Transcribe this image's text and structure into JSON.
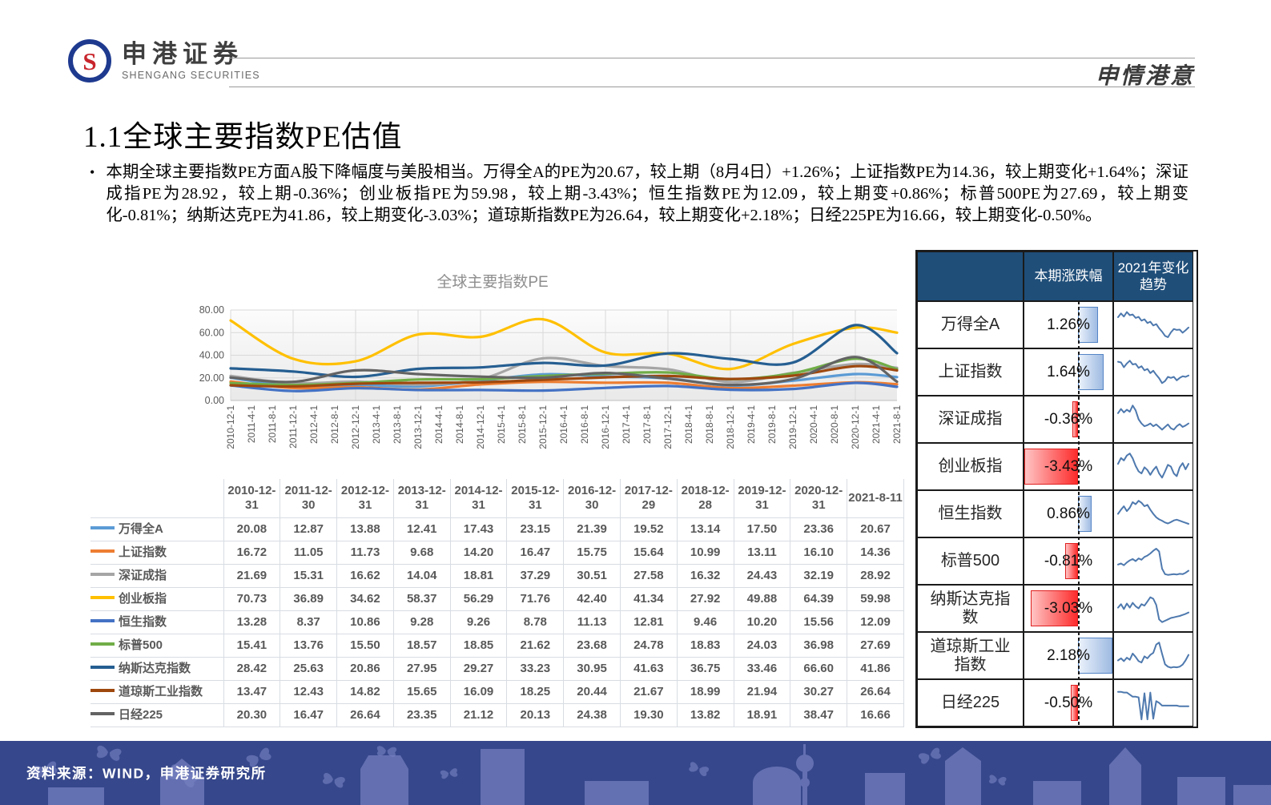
{
  "header": {
    "brand_cn": "申港证券",
    "brand_en": "SHENGANG SECURITIES",
    "logo_letter": "S",
    "slogan": "申情港意"
  },
  "page": {
    "title": "1.1全球主要指数PE估值",
    "bullet_marker": "•",
    "bullet": "本期全球主要指数PE方面A股下降幅度与美股相当。万得全A的PE为20.67，较上期（8月4日）+1.26%；上证指数PE为14.36，较上期变化+1.64%；深证成指PE为28.92，较上期-0.36%；创业板指PE为59.98，较上期-3.43%；恒生指数PE为12.09，较上期变+0.86%；标普500PE为27.69，较上期变化-0.81%；纳斯达克PE为41.86，较上期变化-3.03%；道琼斯指数PE为26.64，较上期变化+2.18%；日经225PE为16.66，较上期变化-0.50%。"
  },
  "chart_data": {
    "type": "line",
    "title": "全球主要指数PE",
    "ylim": [
      0,
      80
    ],
    "yticks": [
      0,
      20,
      40,
      60,
      80
    ],
    "grid": true,
    "legend_position": "table-left-column",
    "x_axis_labels": [
      "2010-12-1",
      "2011-4-1",
      "2011-8-1",
      "2011-12-1",
      "2012-4-1",
      "2012-8-1",
      "2012-12-1",
      "2013-4-1",
      "2013-8-1",
      "2013-12-1",
      "2014-4-1",
      "2014-8-1",
      "2014-12-1",
      "2015-4-1",
      "2015-8-1",
      "2015-12-1",
      "2016-4-1",
      "2016-8-1",
      "2016-12-1",
      "2017-4-1",
      "2017-8-1",
      "2017-12-1",
      "2018-4-1",
      "2018-8-1",
      "2018-12-1",
      "2019-4-1",
      "2019-8-1",
      "2019-12-1",
      "2020-4-1",
      "2020-8-1",
      "2020-12-1",
      "2021-4-1",
      "2021-8-1"
    ],
    "sample_dates": [
      "2010-12-31",
      "2011-12-30",
      "2012-12-31",
      "2013-12-31",
      "2014-12-31",
      "2015-12-31",
      "2016-12-30",
      "2017-12-29",
      "2018-12-28",
      "2019-12-31",
      "2020-12-31",
      "2021-8-11"
    ],
    "sample_tick_index": [
      0,
      3,
      6,
      9,
      12,
      15,
      18,
      21,
      24,
      27,
      30,
      32
    ],
    "series": [
      {
        "name": "万得全A",
        "color": "#5B9BD5",
        "values": [
          20.08,
          12.87,
          13.88,
          12.41,
          17.43,
          23.15,
          21.39,
          19.52,
          13.14,
          17.5,
          23.36,
          20.67
        ]
      },
      {
        "name": "上证指数",
        "color": "#ED7D31",
        "values": [
          16.72,
          11.05,
          11.73,
          9.68,
          14.2,
          16.47,
          15.75,
          15.64,
          10.99,
          13.11,
          16.1,
          14.36
        ]
      },
      {
        "name": "深证成指",
        "color": "#A5A5A5",
        "values": [
          21.69,
          15.31,
          16.62,
          14.04,
          18.81,
          37.29,
          30.51,
          27.58,
          16.32,
          24.43,
          32.19,
          28.92
        ]
      },
      {
        "name": "创业板指",
        "color": "#FFC000",
        "values": [
          70.73,
          36.89,
          34.62,
          58.37,
          56.29,
          71.76,
          42.4,
          41.34,
          27.92,
          49.88,
          64.39,
          59.98
        ]
      },
      {
        "name": "恒生指数",
        "color": "#4472C4",
        "values": [
          13.28,
          8.37,
          10.86,
          9.28,
          9.26,
          8.78,
          11.13,
          12.81,
          9.46,
          10.2,
          15.56,
          12.09
        ]
      },
      {
        "name": "标普500",
        "color": "#70AD47",
        "values": [
          15.41,
          13.76,
          15.5,
          18.57,
          18.85,
          21.62,
          23.68,
          24.78,
          18.83,
          24.03,
          36.98,
          27.69
        ]
      },
      {
        "name": "纳斯达克指数",
        "color": "#255E91",
        "values": [
          28.42,
          25.63,
          20.86,
          27.95,
          29.27,
          33.23,
          30.95,
          41.63,
          36.75,
          33.46,
          66.6,
          41.86
        ]
      },
      {
        "name": "道琼斯工业指数",
        "color": "#9E480E",
        "values": [
          13.47,
          12.43,
          14.82,
          15.65,
          16.09,
          18.25,
          20.44,
          21.67,
          18.99,
          21.94,
          30.27,
          26.64
        ]
      },
      {
        "name": "日经225",
        "color": "#636363",
        "values": [
          20.3,
          16.47,
          26.64,
          23.35,
          21.12,
          20.13,
          24.38,
          19.3,
          13.82,
          18.91,
          38.47,
          16.66
        ]
      }
    ]
  },
  "panel": {
    "headers": [
      "本期涨跌幅",
      "2021年变化趋势"
    ],
    "rows": [
      {
        "name": "万得全A",
        "change": "1.26%",
        "value": 1.26,
        "spark": [
          0.72,
          0.83,
          0.74,
          0.87,
          0.78,
          0.8,
          0.7,
          0.73,
          0.62,
          0.66,
          0.55,
          0.59,
          0.48,
          0.52,
          0.4,
          0.3,
          0.18,
          0.14,
          0.28,
          0.38,
          0.35,
          0.36,
          0.27,
          0.34,
          0.42
        ]
      },
      {
        "name": "上证指数",
        "change": "1.64%",
        "value": 1.64,
        "spark": [
          0.8,
          0.78,
          0.64,
          0.75,
          0.83,
          0.72,
          0.74,
          0.62,
          0.67,
          0.55,
          0.59,
          0.47,
          0.54,
          0.42,
          0.32,
          0.18,
          0.24,
          0.36,
          0.33,
          0.36,
          0.26,
          0.33,
          0.38,
          0.36,
          0.4
        ]
      },
      {
        "name": "深证成指",
        "change": "-0.36%",
        "value": -0.36,
        "spark": [
          0.68,
          0.8,
          0.7,
          0.78,
          0.72,
          0.9,
          0.76,
          0.5,
          0.38,
          0.3,
          0.33,
          0.38,
          0.3,
          0.35,
          0.28,
          0.2,
          0.28,
          0.35,
          0.24,
          0.2,
          0.3,
          0.36,
          0.28,
          0.32,
          0.38
        ]
      },
      {
        "name": "创业板指",
        "change": "-3.43%",
        "value": -3.43,
        "spark": [
          0.58,
          0.75,
          0.68,
          0.82,
          0.88,
          0.74,
          0.52,
          0.36,
          0.3,
          0.48,
          0.4,
          0.26,
          0.4,
          0.5,
          0.3,
          0.18,
          0.36,
          0.55,
          0.5,
          0.3,
          0.22,
          0.48,
          0.6,
          0.42,
          0.58
        ]
      },
      {
        "name": "恒生指数",
        "change": "0.86%",
        "value": 0.86,
        "spark": [
          0.5,
          0.62,
          0.72,
          0.58,
          0.68,
          0.84,
          0.78,
          0.88,
          0.82,
          0.72,
          0.76,
          0.62,
          0.5,
          0.4,
          0.34,
          0.3,
          0.25,
          0.22,
          0.26,
          0.31,
          0.33,
          0.3,
          0.27,
          0.24,
          0.21
        ]
      },
      {
        "name": "标普500",
        "change": "-0.81%",
        "value": -0.81,
        "spark": [
          0.4,
          0.43,
          0.38,
          0.46,
          0.52,
          0.56,
          0.5,
          0.58,
          0.54,
          0.62,
          0.66,
          0.72,
          0.8,
          0.86,
          0.78,
          0.28,
          0.12,
          0.1,
          0.11,
          0.12,
          0.11,
          0.13,
          0.12,
          0.16,
          0.22
        ]
      },
      {
        "name": "纳斯达克指数",
        "change": "-3.03%",
        "value": -3.03,
        "spark": [
          0.52,
          0.62,
          0.48,
          0.64,
          0.52,
          0.66,
          0.56,
          0.5,
          0.62,
          0.58,
          0.7,
          0.82,
          0.78,
          0.6,
          0.18,
          0.1,
          0.14,
          0.18,
          0.22,
          0.24,
          0.26,
          0.28,
          0.31,
          0.34,
          0.38
        ]
      },
      {
        "name": "道琼斯工业指数",
        "change": "2.18%",
        "value": 2.18,
        "spark": [
          0.36,
          0.42,
          0.34,
          0.44,
          0.38,
          0.56,
          0.46,
          0.34,
          0.3,
          0.48,
          0.42,
          0.52,
          0.58,
          0.82,
          0.88,
          0.55,
          0.25,
          0.18,
          0.15,
          0.17,
          0.16,
          0.18,
          0.24,
          0.36,
          0.52
        ]
      },
      {
        "name": "日经225",
        "change": "-0.50%",
        "value": -0.5,
        "spark": [
          0.82,
          0.82,
          0.8,
          0.8,
          0.74,
          0.68,
          0.68,
          0.66,
          0.02,
          0.78,
          0.02,
          0.8,
          0.04,
          0.55,
          0.5,
          0.42,
          0.42,
          0.42,
          0.42,
          0.42,
          0.42,
          0.4,
          0.4,
          0.4,
          0.4
        ]
      }
    ]
  },
  "footer": {
    "source": "资料来源：WIND，申港证券研究所"
  },
  "colors": {
    "navy_header": "#1F4E79",
    "footer_bg": "#36478B",
    "footer_shape": "#6F7ABB",
    "spark_line": "#4E79AE",
    "logo_ring": "#1E3A8F",
    "logo_letter": "#C8252C",
    "grid_line": "#D9D9D9",
    "axis_text": "#595959",
    "chart_title_gray": "#8E8E8E"
  }
}
